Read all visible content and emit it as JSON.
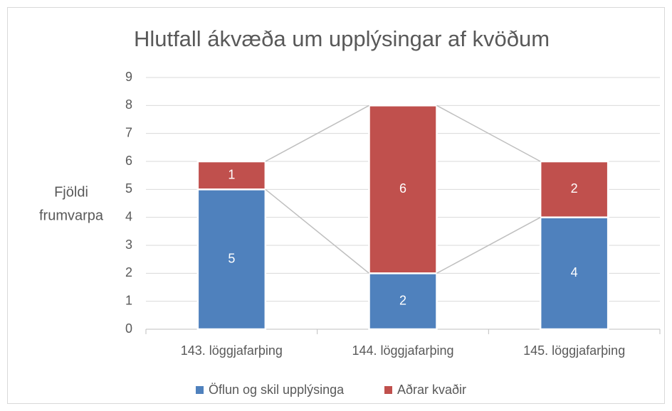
{
  "chart_data": {
    "type": "stacked_bar",
    "title": "Hlutfall ákvæða um upplýsingar af kvöðum",
    "y_label": [
      "Fjöldi",
      "frumvarpa"
    ],
    "categories": [
      "143. löggjafarþing",
      "144. löggjafarþing",
      "145. löggjafarþing"
    ],
    "series": [
      {
        "name": "Öflun og skil upplýsinga",
        "color": "#4f81bd",
        "values": [
          5,
          2,
          4
        ]
      },
      {
        "name": "Aðrar kvaðir",
        "color": "#c0504d",
        "values": [
          1,
          6,
          2
        ]
      }
    ],
    "ylim": [
      0,
      9
    ],
    "yticks": [
      0,
      1,
      2,
      3,
      4,
      5,
      6,
      7,
      8,
      9
    ],
    "grid": true,
    "series_lines": true,
    "legend": "bottom"
  }
}
